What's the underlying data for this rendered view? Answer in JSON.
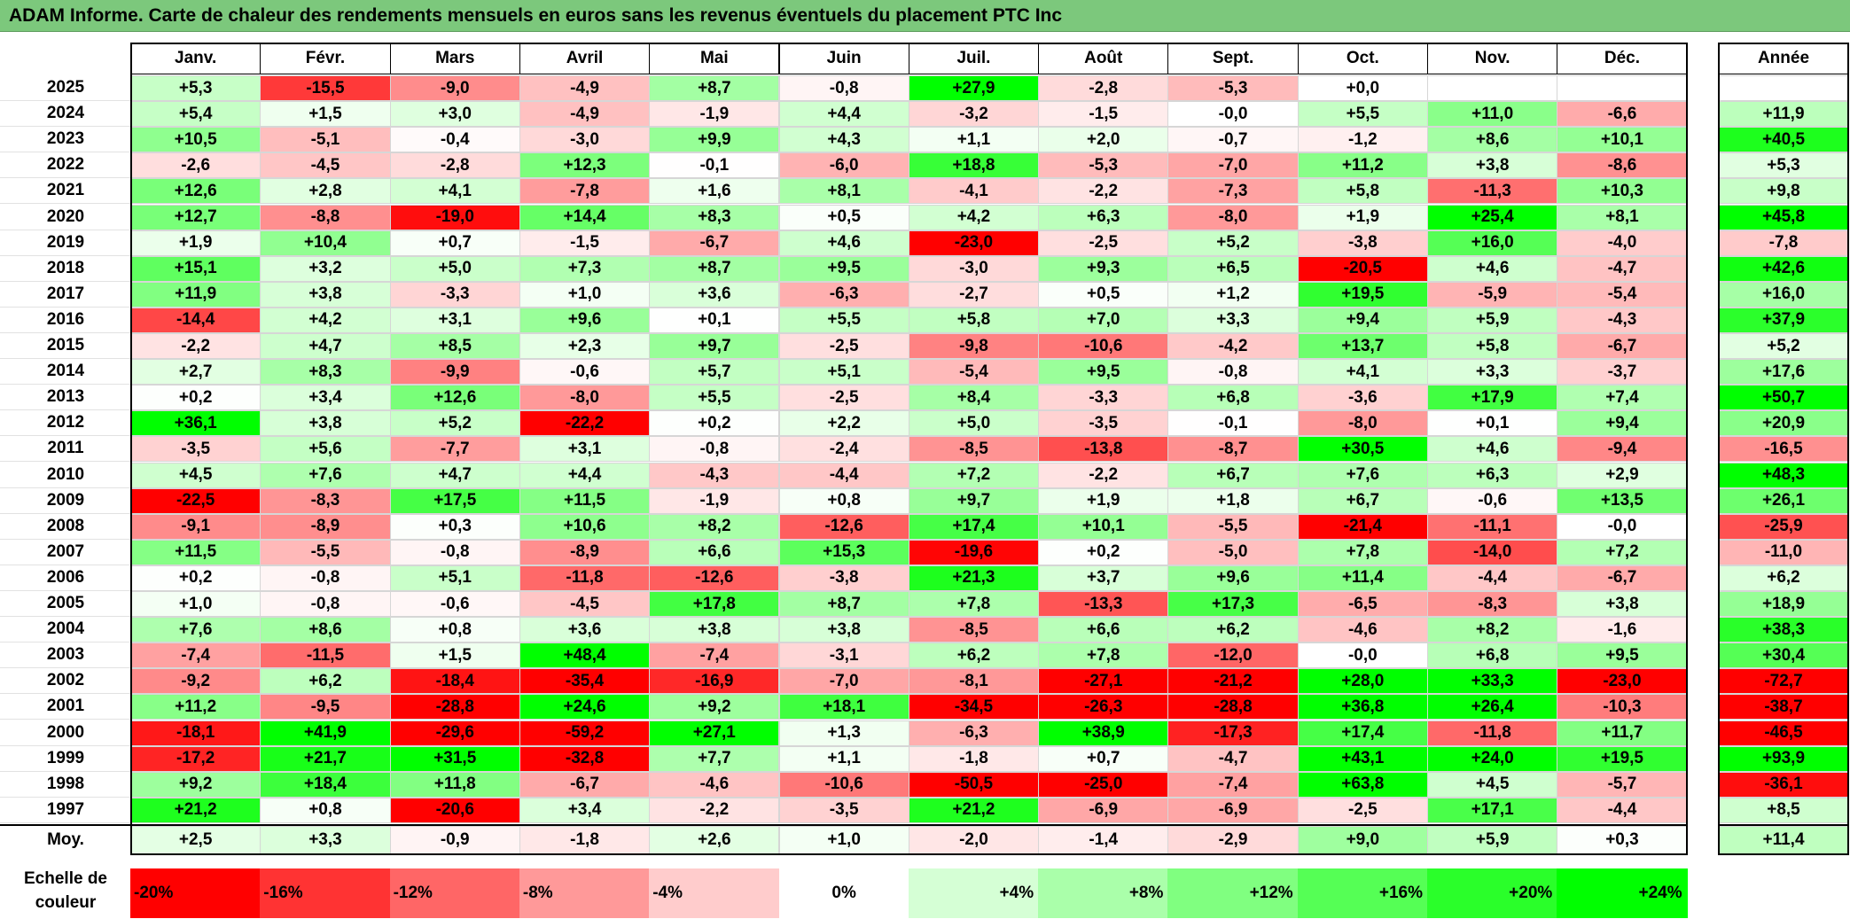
{
  "title": "ADAM Informe. Carte de chaleur des rendements mensuels en euros sans les revenus éventuels du placement PTC Inc",
  "colors": {
    "title_bg": "#7cc87c",
    "positive": "#00ff00",
    "negative": "#ff0000",
    "neutral": "#ffffff"
  },
  "chart_data": {
    "type": "heatmap",
    "title": "ADAM Informe. Carte de chaleur des rendements mensuels en euros sans les revenus éventuels du placement PTC Inc",
    "columns": [
      "Janv.",
      "Févr.",
      "Mars",
      "Avril",
      "Mai",
      "Juin",
      "Juil.",
      "Août",
      "Sept.",
      "Oct.",
      "Nov.",
      "Déc."
    ],
    "year_header": "Année",
    "rows": [
      {
        "label": "2025",
        "values": [
          "+5,3",
          "-15,5",
          "-9,0",
          "-4,9",
          "+8,7",
          "-0,8",
          "+27,9",
          "-2,8",
          "-5,3",
          "+0,0",
          "",
          ""
        ],
        "year": ""
      },
      {
        "label": "2024",
        "values": [
          "+5,4",
          "+1,5",
          "+3,0",
          "-4,9",
          "-1,9",
          "+4,4",
          "-3,2",
          "-1,5",
          "-0,0",
          "+5,5",
          "+11,0",
          "-6,6"
        ],
        "year": "+11,9"
      },
      {
        "label": "2023",
        "values": [
          "+10,5",
          "-5,1",
          "-0,4",
          "-3,0",
          "+9,9",
          "+4,3",
          "+1,1",
          "+2,0",
          "-0,7",
          "-1,2",
          "+8,6",
          "+10,1"
        ],
        "year": "+40,5"
      },
      {
        "label": "2022",
        "values": [
          "-2,6",
          "-4,5",
          "-2,8",
          "+12,3",
          "-0,1",
          "-6,0",
          "+18,8",
          "-5,3",
          "-7,0",
          "+11,2",
          "+3,8",
          "-8,6"
        ],
        "year": "+5,3"
      },
      {
        "label": "2021",
        "values": [
          "+12,6",
          "+2,8",
          "+4,1",
          "-7,8",
          "+1,6",
          "+8,1",
          "-4,1",
          "-2,2",
          "-7,3",
          "+5,8",
          "-11,3",
          "+10,3"
        ],
        "year": "+9,8"
      },
      {
        "label": "2020",
        "values": [
          "+12,7",
          "-8,8",
          "-19,0",
          "+14,4",
          "+8,3",
          "+0,5",
          "+4,2",
          "+6,3",
          "-8,0",
          "+1,9",
          "+25,4",
          "+8,1"
        ],
        "year": "+45,8"
      },
      {
        "label": "2019",
        "values": [
          "+1,9",
          "+10,4",
          "+0,7",
          "-1,5",
          "-6,7",
          "+4,6",
          "-23,0",
          "-2,5",
          "+5,2",
          "-3,8",
          "+16,0",
          "-4,0"
        ],
        "year": "-7,8"
      },
      {
        "label": "2018",
        "values": [
          "+15,1",
          "+3,2",
          "+5,0",
          "+7,3",
          "+8,7",
          "+9,5",
          "-3,0",
          "+9,3",
          "+6,5",
          "-20,5",
          "+4,6",
          "-4,7"
        ],
        "year": "+42,6"
      },
      {
        "label": "2017",
        "values": [
          "+11,9",
          "+3,8",
          "-3,3",
          "+1,0",
          "+3,6",
          "-6,3",
          "-2,7",
          "+0,5",
          "+1,2",
          "+19,5",
          "-5,9",
          "-5,4"
        ],
        "year": "+16,0"
      },
      {
        "label": "2016",
        "values": [
          "-14,4",
          "+4,2",
          "+3,1",
          "+9,6",
          "+0,1",
          "+5,5",
          "+5,8",
          "+7,0",
          "+3,3",
          "+9,4",
          "+5,9",
          "-4,3"
        ],
        "year": "+37,9"
      },
      {
        "label": "2015",
        "values": [
          "-2,2",
          "+4,7",
          "+8,5",
          "+2,3",
          "+9,7",
          "-2,5",
          "-9,8",
          "-10,6",
          "-4,2",
          "+13,7",
          "+5,8",
          "-6,7"
        ],
        "year": "+5,2"
      },
      {
        "label": "2014",
        "values": [
          "+2,7",
          "+8,3",
          "-9,9",
          "-0,6",
          "+5,7",
          "+5,1",
          "-5,4",
          "+9,5",
          "-0,8",
          "+4,1",
          "+3,3",
          "-3,7"
        ],
        "year": "+17,6"
      },
      {
        "label": "2013",
        "values": [
          "+0,2",
          "+3,4",
          "+12,6",
          "-8,0",
          "+5,5",
          "-2,5",
          "+8,4",
          "-3,3",
          "+6,8",
          "-3,6",
          "+17,9",
          "+7,4"
        ],
        "year": "+50,7"
      },
      {
        "label": "2012",
        "values": [
          "+36,1",
          "+3,8",
          "+5,2",
          "-22,2",
          "+0,2",
          "+2,2",
          "+5,0",
          "-3,5",
          "-0,1",
          "-8,0",
          "+0,1",
          "+9,4"
        ],
        "year": "+20,9"
      },
      {
        "label": "2011",
        "values": [
          "-3,5",
          "+5,6",
          "-7,7",
          "+3,1",
          "-0,8",
          "-2,4",
          "-8,5",
          "-13,8",
          "-8,7",
          "+30,5",
          "+4,6",
          "-9,4"
        ],
        "year": "-16,5"
      },
      {
        "label": "2010",
        "values": [
          "+4,5",
          "+7,6",
          "+4,7",
          "+4,4",
          "-4,3",
          "-4,4",
          "+7,2",
          "-2,2",
          "+6,7",
          "+7,6",
          "+6,3",
          "+2,9"
        ],
        "year": "+48,3"
      },
      {
        "label": "2009",
        "values": [
          "-22,5",
          "-8,3",
          "+17,5",
          "+11,5",
          "-1,9",
          "+0,8",
          "+9,7",
          "+1,9",
          "+1,8",
          "+6,7",
          "-0,6",
          "+13,5"
        ],
        "year": "+26,1"
      },
      {
        "label": "2008",
        "values": [
          "-9,1",
          "-8,9",
          "+0,3",
          "+10,6",
          "+8,2",
          "-12,6",
          "+17,4",
          "+10,1",
          "-5,5",
          "-21,4",
          "-11,1",
          "-0,0"
        ],
        "year": "-25,9"
      },
      {
        "label": "2007",
        "values": [
          "+11,5",
          "-5,5",
          "-0,8",
          "-8,9",
          "+6,6",
          "+15,3",
          "-19,6",
          "+0,2",
          "-5,0",
          "+7,8",
          "-14,0",
          "+7,2"
        ],
        "year": "-11,0"
      },
      {
        "label": "2006",
        "values": [
          "+0,2",
          "-0,8",
          "+5,1",
          "-11,8",
          "-12,6",
          "-3,8",
          "+21,3",
          "+3,7",
          "+9,6",
          "+11,4",
          "-4,4",
          "-6,7"
        ],
        "year": "+6,2"
      },
      {
        "label": "2005",
        "values": [
          "+1,0",
          "-0,8",
          "-0,6",
          "-4,5",
          "+17,8",
          "+8,7",
          "+7,8",
          "-13,3",
          "+17,3",
          "-6,5",
          "-8,3",
          "+3,8"
        ],
        "year": "+18,9"
      },
      {
        "label": "2004",
        "values": [
          "+7,6",
          "+8,6",
          "+0,8",
          "+3,6",
          "+3,8",
          "+3,8",
          "-8,5",
          "+6,6",
          "+6,2",
          "-4,6",
          "+8,2",
          "-1,6"
        ],
        "year": "+38,3"
      },
      {
        "label": "2003",
        "values": [
          "-7,4",
          "-11,5",
          "+1,5",
          "+48,4",
          "-7,4",
          "-3,1",
          "+6,2",
          "+7,8",
          "-12,0",
          "-0,0",
          "+6,8",
          "+9,5"
        ],
        "year": "+30,4"
      },
      {
        "label": "2002",
        "values": [
          "-9,2",
          "+6,2",
          "-18,4",
          "-35,4",
          "-16,9",
          "-7,0",
          "-8,1",
          "-27,1",
          "-21,2",
          "+28,0",
          "+33,3",
          "-23,0"
        ],
        "year": "-72,7"
      },
      {
        "label": "2001",
        "values": [
          "+11,2",
          "-9,5",
          "-28,8",
          "+24,6",
          "+9,2",
          "+18,1",
          "-34,5",
          "-26,3",
          "-28,8",
          "+36,8",
          "+26,4",
          "-10,3"
        ],
        "year": "-38,7"
      },
      {
        "label": "2000",
        "values": [
          "-18,1",
          "+41,9",
          "-29,6",
          "-59,2",
          "+27,1",
          "+1,3",
          "-6,3",
          "+38,9",
          "-17,3",
          "+17,4",
          "-11,8",
          "+11,7"
        ],
        "year": "-46,5"
      },
      {
        "label": "1999",
        "values": [
          "-17,2",
          "+21,7",
          "+31,5",
          "-32,8",
          "+7,7",
          "+1,1",
          "-1,8",
          "+0,7",
          "-4,7",
          "+43,1",
          "+24,0",
          "+19,5"
        ],
        "year": "+93,9"
      },
      {
        "label": "1998",
        "values": [
          "+9,2",
          "+18,4",
          "+11,8",
          "-6,7",
          "-4,6",
          "-10,6",
          "-50,5",
          "-25,0",
          "-7,4",
          "+63,8",
          "+4,5",
          "-5,7"
        ],
        "year": "-36,1"
      },
      {
        "label": "1997",
        "values": [
          "+21,2",
          "+0,8",
          "-20,6",
          "+3,4",
          "-2,2",
          "-3,5",
          "+21,2",
          "-6,9",
          "-6,9",
          "-2,5",
          "+17,1",
          "-4,4"
        ],
        "year": "+8,5"
      }
    ],
    "average": {
      "label": "Moy.",
      "values": [
        "+2,5",
        "+3,3",
        "-0,9",
        "-1,8",
        "+2,6",
        "+1,0",
        "-2,0",
        "-1,4",
        "-2,9",
        "+9,0",
        "+5,9",
        "+0,3"
      ],
      "year": "+11,4"
    },
    "color_scale": {
      "label": "Echelle de couleur",
      "stops": [
        {
          "label": "-20%",
          "value": -20
        },
        {
          "label": "-16%",
          "value": -16
        },
        {
          "label": "-12%",
          "value": -12
        },
        {
          "label": "-8%",
          "value": -8
        },
        {
          "label": "-4%",
          "value": -4
        },
        {
          "label": "0%",
          "value": 0
        },
        {
          "label": "+4%",
          "value": 4
        },
        {
          "label": "+8%",
          "value": 8
        },
        {
          "label": "+12%",
          "value": 12
        },
        {
          "label": "+16%",
          "value": 16
        },
        {
          "label": "+20%",
          "value": 20
        },
        {
          "label": "+24%",
          "value": 24
        }
      ]
    }
  }
}
